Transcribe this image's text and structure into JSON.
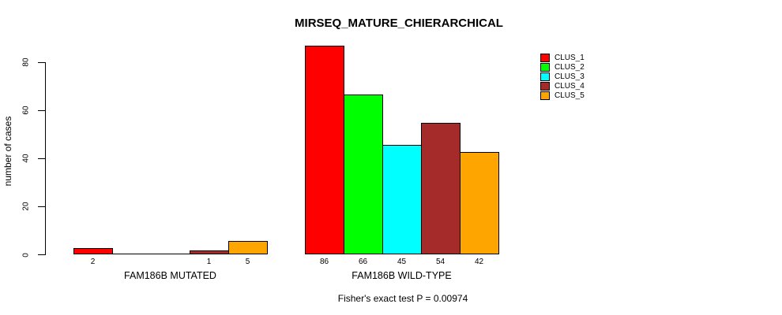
{
  "chart_data": {
    "type": "bar",
    "title": "MIRSEQ_MATURE_CHIERARCHICAL",
    "ylabel": "number of cases",
    "xlabel": "",
    "ylim": [
      0,
      80
    ],
    "y_ticks": [
      0,
      20,
      40,
      60,
      80
    ],
    "categories": [
      "FAM186B MUTATED",
      "FAM186B WILD-TYPE"
    ],
    "series": [
      {
        "name": "CLUS_1",
        "color": "#FF0000",
        "values": [
          2,
          86
        ]
      },
      {
        "name": "CLUS_2",
        "color": "#00FF00",
        "values": [
          0,
          66
        ]
      },
      {
        "name": "CLUS_3",
        "color": "#00FFFF",
        "values": [
          0,
          45
        ]
      },
      {
        "name": "CLUS_4",
        "color": "#A52A2A",
        "values": [
          1,
          54
        ]
      },
      {
        "name": "CLUS_5",
        "color": "#FFA500",
        "values": [
          5,
          42
        ]
      }
    ],
    "show_value_labels_for_nonzero_bars": true,
    "annotation": "Fisher's exact test P = 0.00974",
    "legend_position": "top-right",
    "grid": false,
    "background": "#FFFFFF",
    "axis_color": "#000000"
  }
}
